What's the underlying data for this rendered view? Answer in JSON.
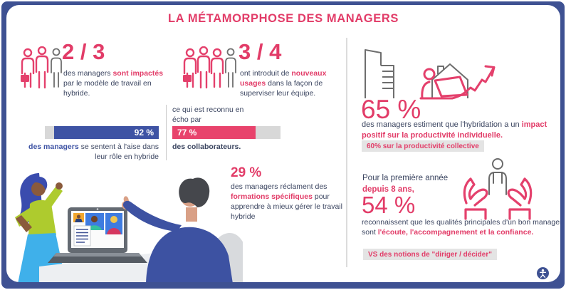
{
  "title": "LA MÉTAMORPHOSE DES MANAGERS",
  "colors": {
    "accent_pink": "#e23c68",
    "bar_blue": "#3e53a4",
    "bar_pink": "#e8436c",
    "text_navy": "#3b4560",
    "frame_blue": "#3e5192",
    "track_gray": "#d8d8d8",
    "chip_gray": "#e4e4e4"
  },
  "stat_two_thirds": {
    "value": "2 / 3",
    "seg1": "des managers ",
    "seg2": "sont impactés",
    "seg3": " par le modèle de travail en hybride."
  },
  "stat_three_quarters": {
    "value": "3 / 4",
    "seg1": "ont introduit de ",
    "seg2": "nouveaux usages",
    "seg3": " dans la façon de superviser leur équipe."
  },
  "bars": {
    "intro": "ce qui est reconnu en écho par",
    "managers": {
      "percent": 92,
      "label": "92 %",
      "cap_bold": "des managers",
      "cap_rest": " se sentent à l'aise dans leur rôle en hybride"
    },
    "collaborators": {
      "percent": 77,
      "label": "77 %",
      "caption": "des collaborateurs."
    }
  },
  "stat_29": {
    "value": "29 %",
    "seg1": "des managers réclament des ",
    "seg2": "formations spécifiques",
    "seg3": " pour apprendre à mieux gérer le travail hybride"
  },
  "stat_65": {
    "value": "65 %",
    "seg1": "des managers estiment que l'hybridation a un ",
    "seg2": "impact positif sur la productivité individuelle.",
    "chip": "60% sur la productivité collective"
  },
  "stat_54": {
    "intro1": "Pour la première année",
    "intro2": "depuis 8 ans,",
    "value": "54 %",
    "seg1": "reconnaissent que les qualités principales d'un bon manager sont ",
    "seg2": "l'écoute, l'accompagnement et la confiance.",
    "chip": "VS des notions de \"diriger / décider\""
  },
  "icons": {
    "left_group": "people-group-3-icon",
    "mid_group": "people-group-4-icon",
    "hybrid_work": "building-house-laptop-growth-arrow-icon",
    "care": "hands-holding-person-icon",
    "corner": "accessibility-icon",
    "scene": "video-call-illustration"
  },
  "chart_data": {
    "type": "bar",
    "title": "LA MÉTAMORPHOSE DES MANAGERS",
    "categories": [
      "des managers (se sentent à l'aise dans leur rôle en hybride)",
      "des collaborateurs (le reconnaissent en écho)"
    ],
    "values": [
      92,
      77
    ],
    "xlabel": "",
    "ylabel": "",
    "ylim": [
      0,
      100
    ],
    "legend": false,
    "key_figures": [
      {
        "value": "2/3",
        "label": "des managers sont impactés par le modèle de travail en hybride"
      },
      {
        "value": "3/4",
        "label": "ont introduit de nouveaux usages dans la façon de superviser leur équipe"
      },
      {
        "value": "92%",
        "label": "des managers se sentent à l'aise dans leur rôle en hybride"
      },
      {
        "value": "77%",
        "label": "des collaborateurs"
      },
      {
        "value": "29%",
        "label": "des managers réclament des formations spécifiques pour apprendre à mieux gérer le travail hybride"
      },
      {
        "value": "65%",
        "label": "des managers estiment que l'hybridation a un impact positif sur la productivité individuelle"
      },
      {
        "value": "60%",
        "label": "sur la productivité collective"
      },
      {
        "value": "54%",
        "label": "reconnaissent que les qualités principales d'un bon manager sont l'écoute, l'accompagnement et la confiance (vs diriger / décider)"
      }
    ]
  }
}
